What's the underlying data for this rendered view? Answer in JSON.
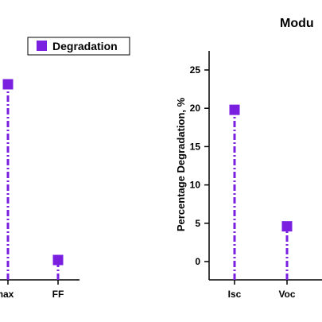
{
  "chart_data": [
    {
      "type": "scatter",
      "style": "stem, dash-dot lines, square markers",
      "categories": [
        "...max",
        "FF"
      ],
      "legend": {
        "label": "Degradation",
        "placement": "top-left"
      },
      "values_relative_to_panel": "left panel y-axis is cropped off; values read only by relative height",
      "series": [
        {
          "name": "Degradation",
          "color": "#7a1fe0"
        }
      ]
    },
    {
      "type": "scatter",
      "style": "stem, dash-dot lines, square markers",
      "title": "Modu",
      "categories": [
        "Isc",
        "Voc",
        ""
      ],
      "ylabel": "Percentage Degradation, %",
      "ylim": [
        -2,
        27
      ],
      "yticks": [
        0,
        5,
        10,
        15,
        20,
        25
      ],
      "series": [
        {
          "name": "Degradation",
          "color": "#7a1fe0",
          "values": [
            19.8,
            4.6
          ]
        }
      ]
    }
  ],
  "left_panel": {
    "tick_labels": [
      "rmax",
      "FF"
    ],
    "legend_label": "Degradation",
    "values": [
      23.2,
      0.2
    ],
    "ylim": [
      -2.5,
      27
    ]
  },
  "right_panel": {
    "title": "Modu",
    "ylabel": "Percentage Degradation, %",
    "tick_labels": [
      "Isc",
      "Voc"
    ],
    "yticks": [
      "0",
      "5",
      "10",
      "15",
      "20",
      "25"
    ]
  }
}
